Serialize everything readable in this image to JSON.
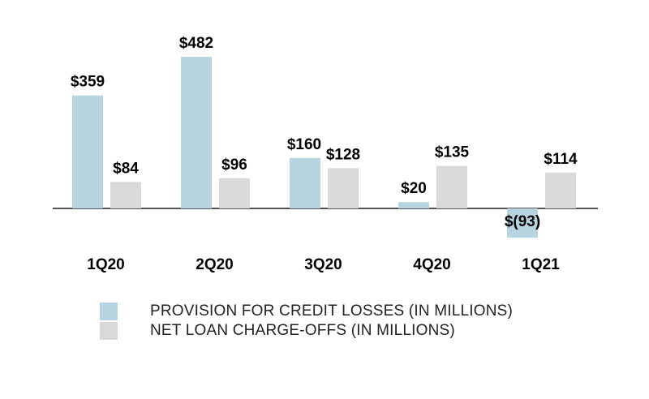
{
  "chart_data": {
    "type": "bar",
    "categories": [
      "1Q20",
      "2Q20",
      "3Q20",
      "4Q20",
      "1Q21"
    ],
    "series": [
      {
        "name": "PROVISION FOR CREDIT LOSSES (IN MILLIONS)",
        "values": [
          359,
          482,
          160,
          20,
          -93
        ],
        "labels": [
          "$359",
          "$482",
          "$160",
          "$20",
          "$(93)"
        ],
        "color": "#b9d4e1"
      },
      {
        "name": "NET LOAN CHARGE-OFFS (IN MILLIONS)",
        "values": [
          84,
          96,
          128,
          135,
          114
        ],
        "labels": [
          "$84",
          "$96",
          "$128",
          "$135",
          "$114"
        ],
        "color": "#d9d9d9"
      }
    ],
    "axis_color": "#555555",
    "grid": false,
    "legend_position": "bottom"
  }
}
